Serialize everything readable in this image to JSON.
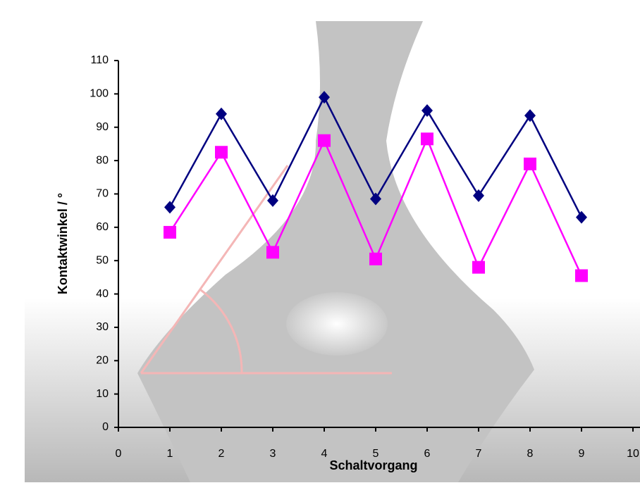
{
  "chart_data": {
    "type": "line",
    "x_label": "Schaltvorgang",
    "y_label": "Kontaktwinkel / °",
    "x": [
      1,
      2,
      3,
      4,
      5,
      6,
      7,
      8,
      9
    ],
    "series": [
      {
        "color": "#000080",
        "marker": "diamond",
        "values": [
          66,
          94,
          68,
          99,
          68.5,
          95,
          69.5,
          93.5,
          63
        ]
      },
      {
        "color": "#ff00ff",
        "marker": "square",
        "values": [
          58.5,
          82.5,
          52.5,
          86,
          50.5,
          86.5,
          48,
          79,
          45.5
        ]
      }
    ],
    "xlim": [
      0,
      10
    ],
    "xticks": [
      0,
      1,
      2,
      3,
      4,
      5,
      6,
      7,
      8,
      9,
      10
    ],
    "ylim": [
      0,
      110
    ],
    "yticks": [
      0,
      10,
      20,
      30,
      40,
      50,
      60,
      70,
      80,
      90,
      100,
      110
    ]
  }
}
